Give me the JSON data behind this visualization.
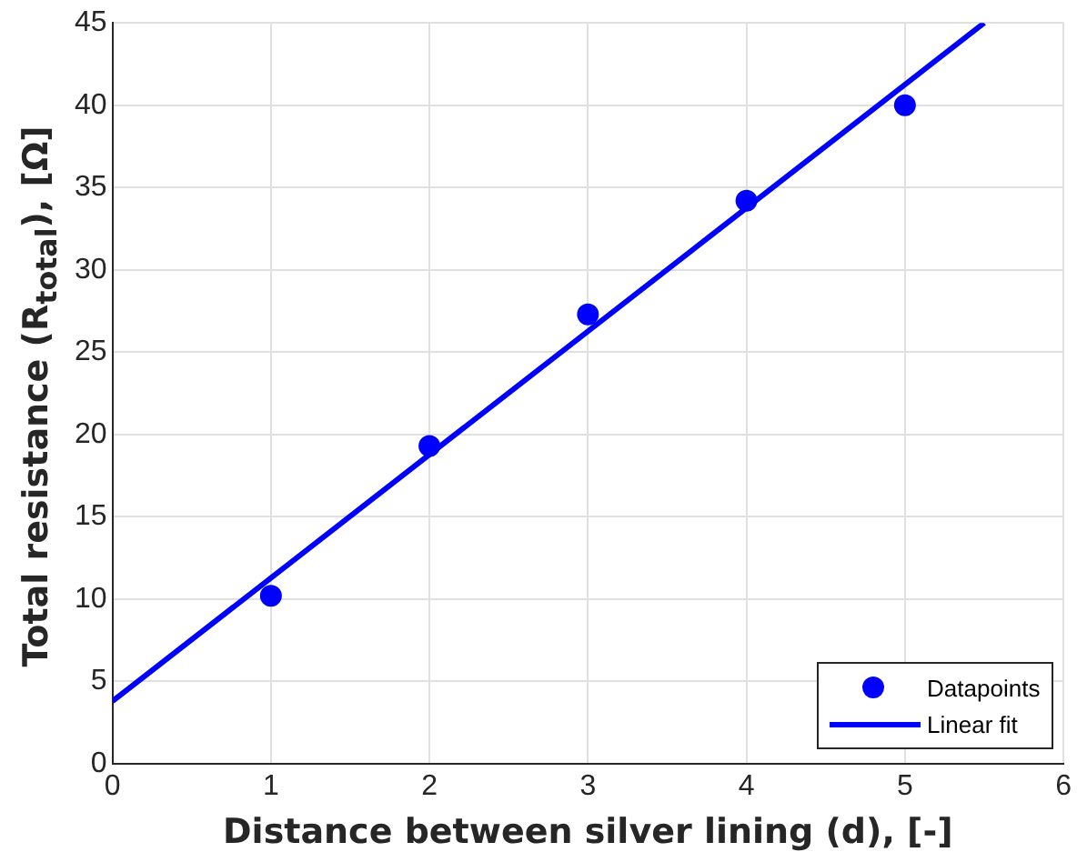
{
  "chart_data": {
    "type": "scatter",
    "xlabel": "Distance between silver lining (d), [-]",
    "ylabel": "Total resistance (R$_{total}$), [Ω]",
    "xlim": [
      0,
      6
    ],
    "xticks": [
      0,
      1,
      2,
      3,
      4,
      5,
      6
    ],
    "ylim": [
      0,
      45
    ],
    "yticks": [
      0,
      5,
      10,
      15,
      20,
      25,
      30,
      35,
      40,
      45
    ],
    "grid": true,
    "legend": "bottom right",
    "series": [
      {
        "name": "Datapoints",
        "color": "#0000ff",
        "marker": "circle",
        "x": [
          1,
          2,
          3,
          4,
          5
        ],
        "values": [
          10.2,
          19.3,
          27.3,
          34.2,
          40
        ]
      },
      {
        "name": "Linear fit",
        "color": "#0000ff",
        "type": "line",
        "x": [
          0,
          5.5
        ],
        "values": [
          3.8,
          45
        ],
        "line_style": "solid",
        "marker": "none"
      }
    ]
  }
}
